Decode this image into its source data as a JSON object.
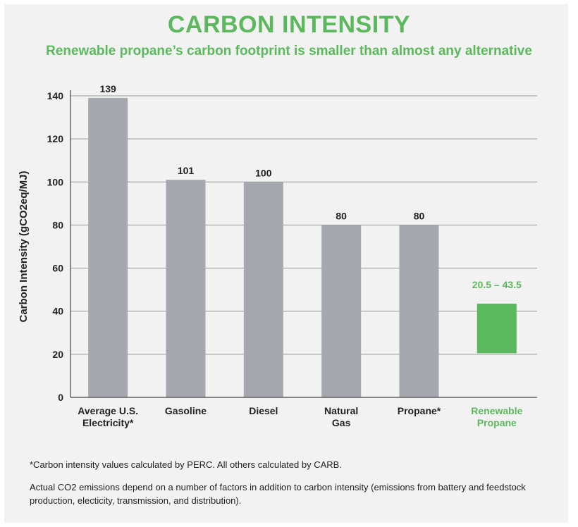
{
  "title": "CARBON INTENSITY",
  "subtitle": "Renewable propane’s carbon footprint is smaller than almost any alternative",
  "footnotes": {
    "perc": "*Carbon intensity values calculated by PERC. All others calculated by CARB.",
    "actual": "Actual CO2 emissions depend on a number of factors in addition to carbon intensity (emissions from battery and feedstock production, electicity, transmission, and distribution)."
  },
  "colors": {
    "accent": "#5cb85c",
    "bar": "#a6a8b0",
    "highlight": "#5cb85c",
    "text": "#222222"
  },
  "chart_data": {
    "type": "bar",
    "title": "CARBON INTENSITY",
    "ylabel": "Carbon Intensity (gCO2eq/MJ)",
    "xlabel": "",
    "ylim": [
      0,
      140
    ],
    "yticks": [
      0,
      20,
      40,
      60,
      80,
      100,
      120,
      140
    ],
    "grid": true,
    "categories": [
      {
        "lines": [
          "Average U.S.",
          "Electricity*"
        ],
        "low": 0,
        "high": 139,
        "label": "139",
        "highlight": false
      },
      {
        "lines": [
          "Gasoline"
        ],
        "low": 0,
        "high": 101,
        "label": "101",
        "highlight": false
      },
      {
        "lines": [
          "Diesel"
        ],
        "low": 0,
        "high": 100,
        "label": "100",
        "highlight": false
      },
      {
        "lines": [
          "Natural",
          "Gas"
        ],
        "low": 0,
        "high": 80,
        "label": "80",
        "highlight": false
      },
      {
        "lines": [
          "Propane*"
        ],
        "low": 0,
        "high": 80,
        "label": "80",
        "highlight": false
      },
      {
        "lines": [
          "Renewable",
          "Propane"
        ],
        "low": 20.5,
        "high": 43.5,
        "label": "20.5 – 43.5",
        "highlight": true
      }
    ]
  }
}
